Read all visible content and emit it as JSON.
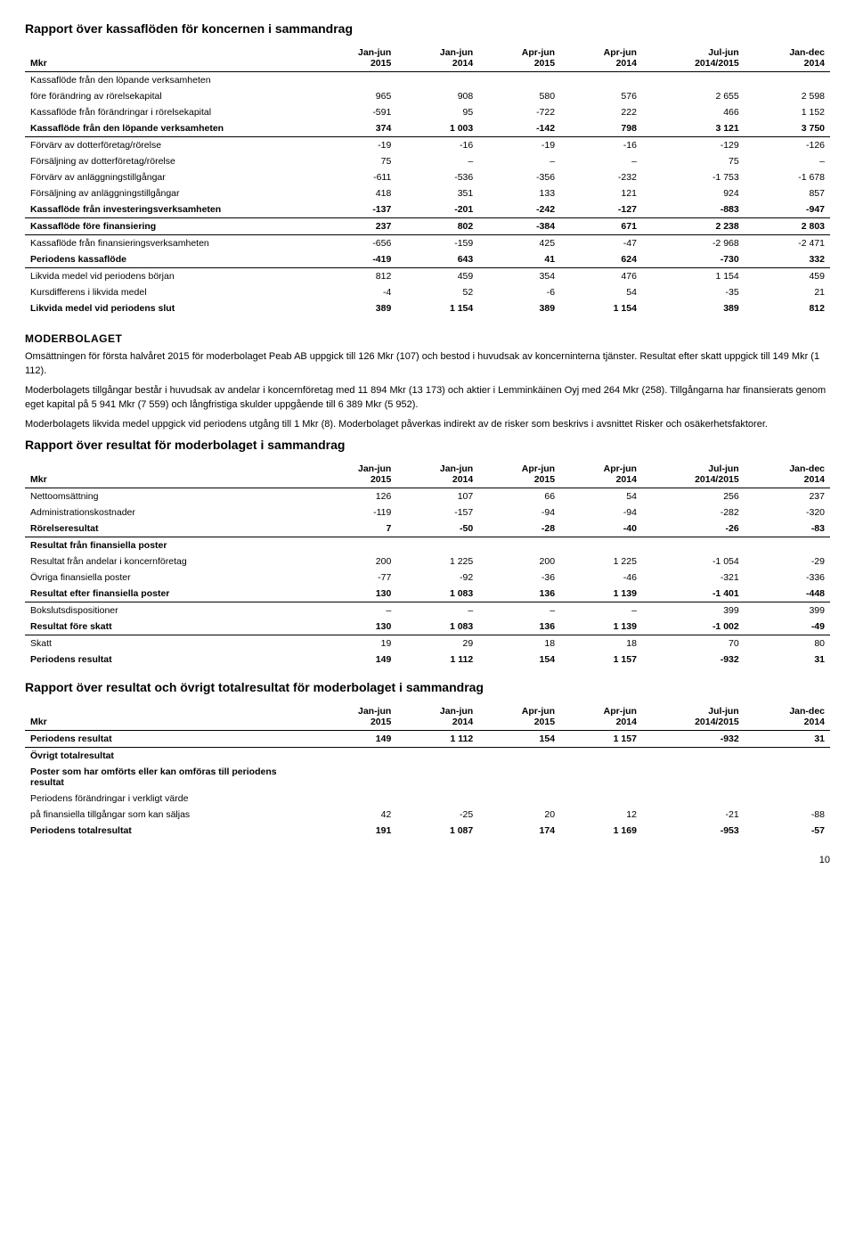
{
  "t1": {
    "title": "Rapport över kassaflöden för koncernen i sammandrag",
    "cols": [
      "Mkr",
      "Jan-jun\n2015",
      "Jan-jun\n2014",
      "Apr-jun\n2015",
      "Apr-jun\n2014",
      "Jul-jun\n2014/2015",
      "Jan-dec\n2014"
    ],
    "sections": [
      [
        {
          "l": "Kassaflöde från den löpande verksamheten",
          "v": [
            "",
            "",
            "",
            "",
            "",
            ""
          ]
        },
        {
          "l": "före förändring av rörelsekapital",
          "v": [
            "965",
            "908",
            "580",
            "576",
            "2 655",
            "2 598"
          ]
        },
        {
          "l": "Kassaflöde från förändringar i rörelsekapital",
          "v": [
            "-591",
            "95",
            "-722",
            "222",
            "466",
            "1 152"
          ]
        },
        {
          "l": "Kassaflöde från den löpande verksamheten",
          "v": [
            "374",
            "1 003",
            "-142",
            "798",
            "3 121",
            "3 750"
          ],
          "bold": true
        }
      ],
      [
        {
          "l": "Förvärv av dotterföretag/rörelse",
          "v": [
            "-19",
            "-16",
            "-19",
            "-16",
            "-129",
            "-126"
          ],
          "top": true
        },
        {
          "l": "Försäljning av dotterföretag/rörelse",
          "v": [
            "75",
            "–",
            "–",
            "–",
            "75",
            "–"
          ]
        },
        {
          "l": "Förvärv av anläggningstillgångar",
          "v": [
            "-611",
            "-536",
            "-356",
            "-232",
            "-1 753",
            "-1 678"
          ]
        },
        {
          "l": "Försäljning av anläggningstillgångar",
          "v": [
            "418",
            "351",
            "133",
            "121",
            "924",
            "857"
          ]
        },
        {
          "l": "Kassaflöde från investeringsverksamheten",
          "v": [
            "-137",
            "-201",
            "-242",
            "-127",
            "-883",
            "-947"
          ],
          "bold": true
        }
      ],
      [
        {
          "l": "Kassaflöde före finansiering",
          "v": [
            "237",
            "802",
            "-384",
            "671",
            "2 238",
            "2 803"
          ],
          "bold": true,
          "top": true
        }
      ],
      [
        {
          "l": "Kassaflöde från finansieringsverksamheten",
          "v": [
            "-656",
            "-159",
            "425",
            "-47",
            "-2 968",
            "-2 471"
          ],
          "top": true
        },
        {
          "l": "Periodens kassaflöde",
          "v": [
            "-419",
            "643",
            "41",
            "624",
            "-730",
            "332"
          ],
          "bold": true
        }
      ],
      [
        {
          "l": "Likvida medel vid periodens början",
          "v": [
            "812",
            "459",
            "354",
            "476",
            "1 154",
            "459"
          ],
          "top": true
        },
        {
          "l": "Kursdifferens i likvida medel",
          "v": [
            "-4",
            "52",
            "-6",
            "54",
            "-35",
            "21"
          ]
        },
        {
          "l": "Likvida medel vid periodens slut",
          "v": [
            "389",
            "1 154",
            "389",
            "1 154",
            "389",
            "812"
          ],
          "bold": true
        }
      ]
    ]
  },
  "mid": {
    "heading": "MODERBOLAGET",
    "p1": "Omsättningen för första halvåret 2015 för moderbolaget Peab AB uppgick till 126 Mkr (107) och bestod i huvudsak av koncerninterna tjänster. Resultat efter skatt uppgick till 149 Mkr (1 112).",
    "p2": "Moderbolagets tillgångar består i huvudsak av andelar i koncernföretag med 11 894 Mkr (13 173) och aktier i Lemminkäinen Oyj med 264 Mkr (258). Tillgångarna har finansierats genom eget kapital på 5 941 Mkr (7 559) och långfristiga skulder uppgående till 6 389 Mkr (5 952).",
    "p3": "Moderbolagets likvida medel uppgick vid periodens utgång till 1 Mkr (8). Moderbolaget påverkas indirekt av de risker som beskrivs i avsnittet Risker och osäkerhetsfaktorer."
  },
  "t2": {
    "title": "Rapport över resultat för moderbolaget i sammandrag",
    "cols": [
      "Mkr",
      "Jan-jun\n2015",
      "Jan-jun\n2014",
      "Apr-jun\n2015",
      "Apr-jun\n2014",
      "Jul-jun\n2014/2015",
      "Jan-dec\n2014"
    ],
    "sections": [
      [
        {
          "l": "Nettoomsättning",
          "v": [
            "126",
            "107",
            "66",
            "54",
            "256",
            "237"
          ]
        },
        {
          "l": "Administrationskostnader",
          "v": [
            "-119",
            "-157",
            "-94",
            "-94",
            "-282",
            "-320"
          ]
        },
        {
          "l": "Rörelseresultat",
          "v": [
            "7",
            "-50",
            "-28",
            "-40",
            "-26",
            "-83"
          ],
          "bold": true
        }
      ],
      [
        {
          "l": "Resultat från finansiella poster",
          "v": [
            "",
            "",
            "",
            "",
            "",
            ""
          ],
          "bold": true,
          "top": true
        },
        {
          "l": "Resultat från andelar i koncernföretag",
          "v": [
            "200",
            "1 225",
            "200",
            "1 225",
            "-1 054",
            "-29"
          ]
        },
        {
          "l": "Övriga finansiella poster",
          "v": [
            "-77",
            "-92",
            "-36",
            "-46",
            "-321",
            "-336"
          ]
        },
        {
          "l": "Resultat efter finansiella poster",
          "v": [
            "130",
            "1 083",
            "136",
            "1 139",
            "-1 401",
            "-448"
          ],
          "bold": true
        }
      ],
      [
        {
          "l": "Bokslutsdispositioner",
          "v": [
            "–",
            "–",
            "–",
            "–",
            "399",
            "399"
          ],
          "top": true
        },
        {
          "l": "Resultat före skatt",
          "v": [
            "130",
            "1 083",
            "136",
            "1 139",
            "-1 002",
            "-49"
          ],
          "bold": true
        }
      ],
      [
        {
          "l": "Skatt",
          "v": [
            "19",
            "29",
            "18",
            "18",
            "70",
            "80"
          ],
          "top": true
        },
        {
          "l": "Periodens resultat",
          "v": [
            "149",
            "1 112",
            "154",
            "1 157",
            "-932",
            "31"
          ],
          "bold": true
        }
      ]
    ]
  },
  "t3": {
    "title": "Rapport över resultat och övrigt totalresultat för moderbolaget i sammandrag",
    "cols": [
      "Mkr",
      "Jan-jun\n2015",
      "Jan-jun\n2014",
      "Apr-jun\n2015",
      "Apr-jun\n2014",
      "Jul-jun\n2014/2015",
      "Jan-dec\n2014"
    ],
    "sections": [
      [
        {
          "l": "Periodens resultat",
          "v": [
            "149",
            "1 112",
            "154",
            "1 157",
            "-932",
            "31"
          ],
          "bold": true
        }
      ],
      [
        {
          "l": "Övrigt totalresultat",
          "v": [
            "",
            "",
            "",
            "",
            "",
            ""
          ],
          "bold": true,
          "top": true
        },
        {
          "l": "Poster som har omförts eller kan omföras till periodens resultat",
          "v": [
            "",
            "",
            "",
            "",
            "",
            ""
          ],
          "bold": true
        },
        {
          "l": "Periodens förändringar i verkligt värde",
          "v": [
            "",
            "",
            "",
            "",
            "",
            ""
          ]
        },
        {
          "l": "på finansiella tillgångar som kan säljas",
          "v": [
            "42",
            "-25",
            "20",
            "12",
            "-21",
            "-88"
          ]
        },
        {
          "l": "Periodens totalresultat",
          "v": [
            "191",
            "1 087",
            "174",
            "1 169",
            "-953",
            "-57"
          ],
          "bold": true
        }
      ]
    ]
  },
  "page": "10"
}
